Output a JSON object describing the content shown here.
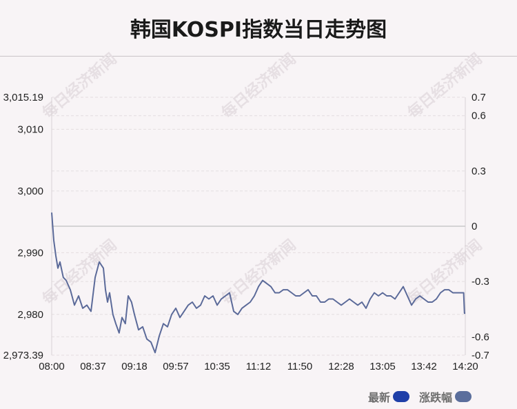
{
  "page": {
    "title": "韩国KOSPI指数当日走势图"
  },
  "watermark": "每日经济新闻",
  "colors": {
    "background": "#f8f4f6",
    "line": "#5b6a99",
    "zero_line": "#c8c8c8",
    "grid": "#e3dde0",
    "legend_latest": "#1f3fa8",
    "legend_change": "#5b6e9c"
  },
  "legend": {
    "latest_label": "最新",
    "change_label": "涨跌幅"
  },
  "chart_data": {
    "type": "line",
    "title": "韩国KOSPI指数当日走势图",
    "xlabel": "",
    "ylabel": "",
    "x_tick_labels": [
      "08:00",
      "08:37",
      "09:18",
      "09:57",
      "10:35",
      "11:12",
      "11:50",
      "12:28",
      "13:05",
      "13:42",
      "14:20"
    ],
    "y_left": {
      "tick_labels": [
        "3,015.19",
        "3,010",
        "3,000",
        "2,990",
        "2,980",
        "2,973.39"
      ],
      "tick_values": [
        3015.19,
        3010,
        3000,
        2990,
        2980,
        2973.39
      ],
      "ylim": [
        2973.39,
        3015.19
      ]
    },
    "y_right": {
      "tick_labels": [
        "0.7",
        "0.6",
        "0.3",
        "0",
        "-0.3",
        "-0.6",
        "-0.7"
      ],
      "tick_values": [
        0.7,
        0.6,
        0.3,
        0,
        -0.3,
        -0.6,
        -0.7
      ],
      "ylim": [
        -0.7,
        0.7
      ],
      "unit": "%"
    },
    "grid": true,
    "legend_position": "bottom-right",
    "series": [
      {
        "name": "最新",
        "x_fraction": [
          0.0,
          0.005,
          0.01,
          0.015,
          0.02,
          0.028,
          0.035,
          0.045,
          0.055,
          0.065,
          0.075,
          0.085,
          0.095,
          0.105,
          0.115,
          0.125,
          0.13,
          0.135,
          0.14,
          0.148,
          0.155,
          0.163,
          0.17,
          0.178,
          0.185,
          0.193,
          0.2,
          0.21,
          0.22,
          0.23,
          0.24,
          0.25,
          0.26,
          0.27,
          0.28,
          0.29,
          0.3,
          0.31,
          0.32,
          0.33,
          0.34,
          0.35,
          0.36,
          0.37,
          0.38,
          0.39,
          0.4,
          0.41,
          0.42,
          0.43,
          0.44,
          0.45,
          0.46,
          0.47,
          0.48,
          0.49,
          0.5,
          0.51,
          0.52,
          0.53,
          0.54,
          0.55,
          0.56,
          0.57,
          0.58,
          0.59,
          0.6,
          0.61,
          0.62,
          0.63,
          0.64,
          0.65,
          0.66,
          0.67,
          0.68,
          0.69,
          0.7,
          0.71,
          0.72,
          0.73,
          0.74,
          0.75,
          0.76,
          0.77,
          0.78,
          0.79,
          0.8,
          0.81,
          0.82,
          0.83,
          0.84,
          0.85,
          0.86,
          0.87,
          0.88,
          0.89,
          0.9,
          0.91,
          0.92,
          0.93,
          0.94,
          0.95,
          0.96,
          0.97,
          0.98,
          0.99,
          0.996,
          0.998,
          1.0
        ],
        "values": [
          2996.5,
          2992.0,
          2989.5,
          2987.5,
          2988.5,
          2986.0,
          2985.5,
          2984.0,
          2981.5,
          2983.0,
          2981.0,
          2981.5,
          2980.5,
          2986.0,
          2988.5,
          2987.5,
          2984.0,
          2982.0,
          2983.5,
          2980.0,
          2978.5,
          2977.0,
          2979.5,
          2978.5,
          2983.0,
          2982.0,
          2980.0,
          2977.5,
          2978.0,
          2976.0,
          2975.5,
          2973.8,
          2976.5,
          2978.5,
          2978.0,
          2980.0,
          2981.0,
          2979.5,
          2980.5,
          2981.5,
          2982.0,
          2981.0,
          2981.5,
          2983.0,
          2982.5,
          2983.0,
          2981.5,
          2982.5,
          2983.0,
          2983.5,
          2980.5,
          2980.0,
          2981.0,
          2981.5,
          2982.0,
          2983.0,
          2984.5,
          2985.5,
          2985.0,
          2984.5,
          2983.5,
          2983.5,
          2984.0,
          2984.0,
          2983.5,
          2983.0,
          2983.0,
          2983.5,
          2984.0,
          2983.0,
          2983.0,
          2982.0,
          2982.0,
          2982.5,
          2982.5,
          2982.0,
          2981.5,
          2982.0,
          2982.5,
          2982.0,
          2981.5,
          2982.0,
          2981.0,
          2982.5,
          2983.5,
          2983.0,
          2983.5,
          2983.0,
          2983.0,
          2982.5,
          2983.5,
          2984.5,
          2983.0,
          2981.5,
          2982.5,
          2983.0,
          2982.5,
          2982.0,
          2982.0,
          2982.5,
          2983.5,
          2984.0,
          2984.0,
          2983.5,
          2983.5,
          2983.5,
          2983.5,
          2980.2,
          2980.2
        ]
      }
    ]
  }
}
